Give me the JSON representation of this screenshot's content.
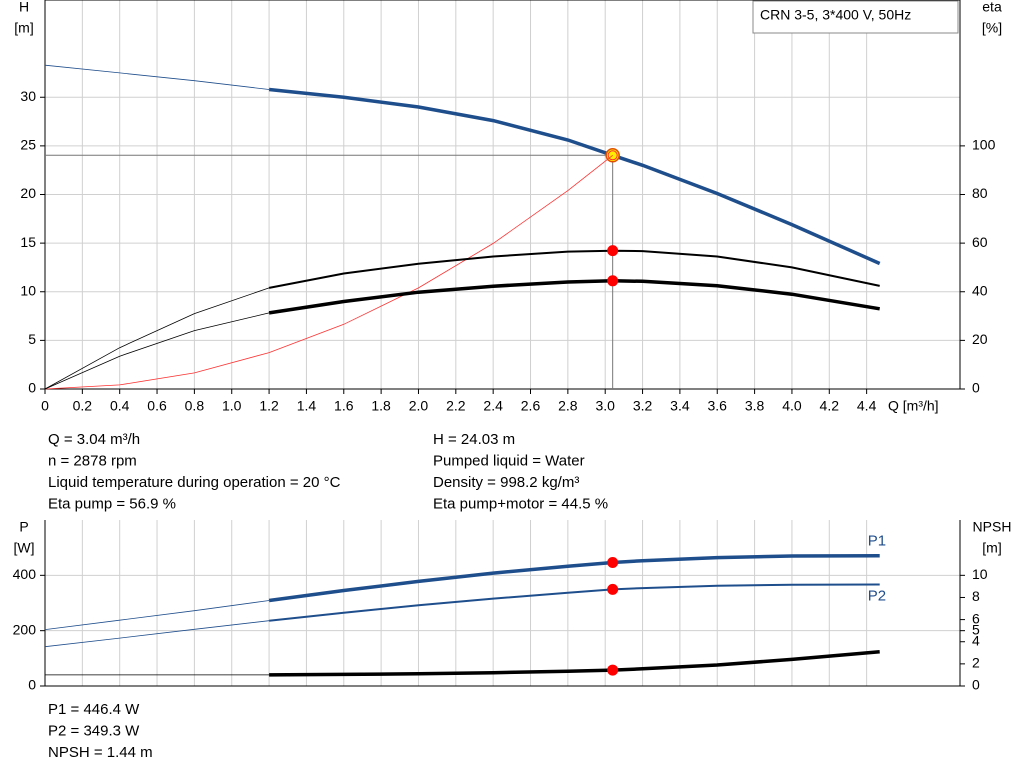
{
  "chart_data": [
    {
      "type": "line",
      "title": "CRN 3-5, 3*400 V, 50Hz",
      "x": [
        0,
        0.4,
        0.8,
        1.2,
        1.6,
        2.0,
        2.4,
        2.8,
        3.04,
        3.2,
        3.6,
        4.0,
        4.47
      ],
      "xlim": [
        0,
        4.9
      ],
      "xticks": [
        0,
        0.2,
        0.4,
        0.6,
        0.8,
        {
          "value": 1,
          "label": "1.0"
        },
        1.2,
        1.4,
        1.6,
        1.8,
        {
          "value": 2,
          "label": "2.0"
        },
        2.2,
        2.4,
        2.6,
        2.8,
        {
          "value": 3,
          "label": "3.0"
        },
        3.2,
        3.4,
        3.6,
        3.8,
        {
          "value": 4,
          "label": "4.0"
        },
        4.2,
        4.4
      ],
      "xlabel": "Q [m³/h]",
      "ylabel": [
        "H",
        "[m]"
      ],
      "ylim": [
        0,
        40
      ],
      "yticks": [
        0,
        5,
        10,
        15,
        20,
        25,
        30
      ],
      "y2label": [
        "eta",
        "[%]"
      ],
      "y2lim": [
        0,
        160
      ],
      "y2ticks": [
        0,
        20,
        40,
        60,
        80,
        100
      ],
      "grid": true,
      "series": [
        {
          "color": "#1f4e8c",
          "values": [
            33.3,
            32.5,
            31.7,
            30.8,
            30.0,
            29.0,
            27.6,
            25.6,
            24.03,
            23.0,
            20.1,
            16.9,
            12.9
          ]
        },
        {
          "color": "#ff3030",
          "values": [
            0,
            0.42,
            1.66,
            3.74,
            6.65,
            10.4,
            14.97,
            20.4,
            24.03,
            null,
            null,
            null,
            null
          ]
        },
        {
          "color": "#000000",
          "axis": "y2",
          "values": [
            0,
            17,
            31,
            41.6,
            47.5,
            51.5,
            54.5,
            56.5,
            56.9,
            56.7,
            54.5,
            50,
            42.4
          ]
        },
        {
          "color": "#000000",
          "axis": "y2",
          "values": [
            0,
            13.5,
            24,
            31.3,
            36,
            39.8,
            42.3,
            44,
            44.5,
            44.3,
            42.5,
            39,
            33
          ]
        }
      ]
    },
    {
      "type": "line",
      "x": [
        0,
        0.4,
        0.8,
        1.2,
        1.6,
        2.0,
        2.4,
        2.8,
        3.04,
        3.2,
        3.6,
        4.0,
        4.47
      ],
      "xlim": [
        0,
        4.9
      ],
      "ylabel": [
        "P",
        "[W]"
      ],
      "ylim": [
        0,
        600
      ],
      "yticks": [
        0,
        200,
        400
      ],
      "y2label": [
        "NPSH",
        "[m]"
      ],
      "y2lim": [
        0,
        15
      ],
      "y2ticks": [
        0,
        2,
        4,
        5,
        6,
        8,
        10
      ],
      "grid": true,
      "series": [
        {
          "name": "P1",
          "color": "#1f4e8c",
          "values": [
            204,
            238,
            272,
            309,
            345,
            378,
            408,
            433,
            446.4,
            453,
            464,
            470,
            471
          ]
        },
        {
          "name": "P2",
          "color": "#1f4e8c",
          "values": [
            142,
            173,
            205,
            236,
            265,
            292,
            316,
            337,
            349.3,
            354,
            362,
            366,
            367
          ]
        },
        {
          "color": "#000000",
          "axis": "y2",
          "values": [
            1.0,
            1.0,
            1.0,
            1.0,
            1.05,
            1.1,
            1.2,
            1.33,
            1.44,
            1.55,
            1.9,
            2.4,
            3.1
          ]
        }
      ]
    }
  ],
  "info": {
    "left": [
      "Q = 3.04 m³/h",
      "n = 2878 rpm",
      "Liquid temperature during operation = 20 °C",
      "Eta pump = 56.9 %"
    ],
    "right": [
      "H = 24.03 m",
      "Pumped liquid = Water",
      "Density = 998.2 kg/m³",
      "Eta pump+motor = 44.5 %"
    ],
    "bottom": [
      "P1 = 446.4 W",
      "P2 = 349.3 W",
      "NPSH = 1.44 m"
    ]
  }
}
